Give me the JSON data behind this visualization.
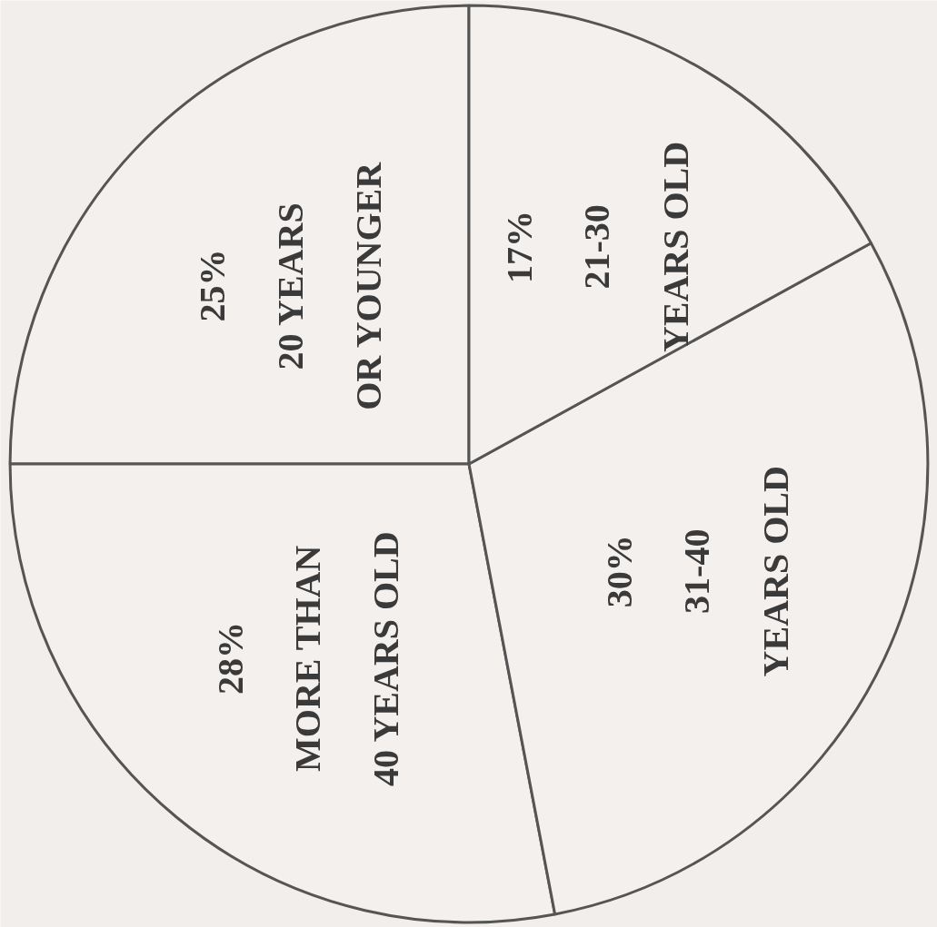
{
  "chart_data": {
    "type": "pie",
    "categories": [
      "20 YEARS OR YOUNGER",
      "MORE THAN 40 YEARS OLD",
      "31-40 YEARS OLD",
      "21-30 YEARS OLD"
    ],
    "values": [
      25,
      28,
      30,
      17
    ],
    "value_labels": [
      "25%",
      "28%",
      "30%",
      "17%"
    ],
    "colors": [
      "#f4f0ee",
      "#f4f0ee",
      "#f4f0ee",
      "#f4f0ee"
    ]
  }
}
